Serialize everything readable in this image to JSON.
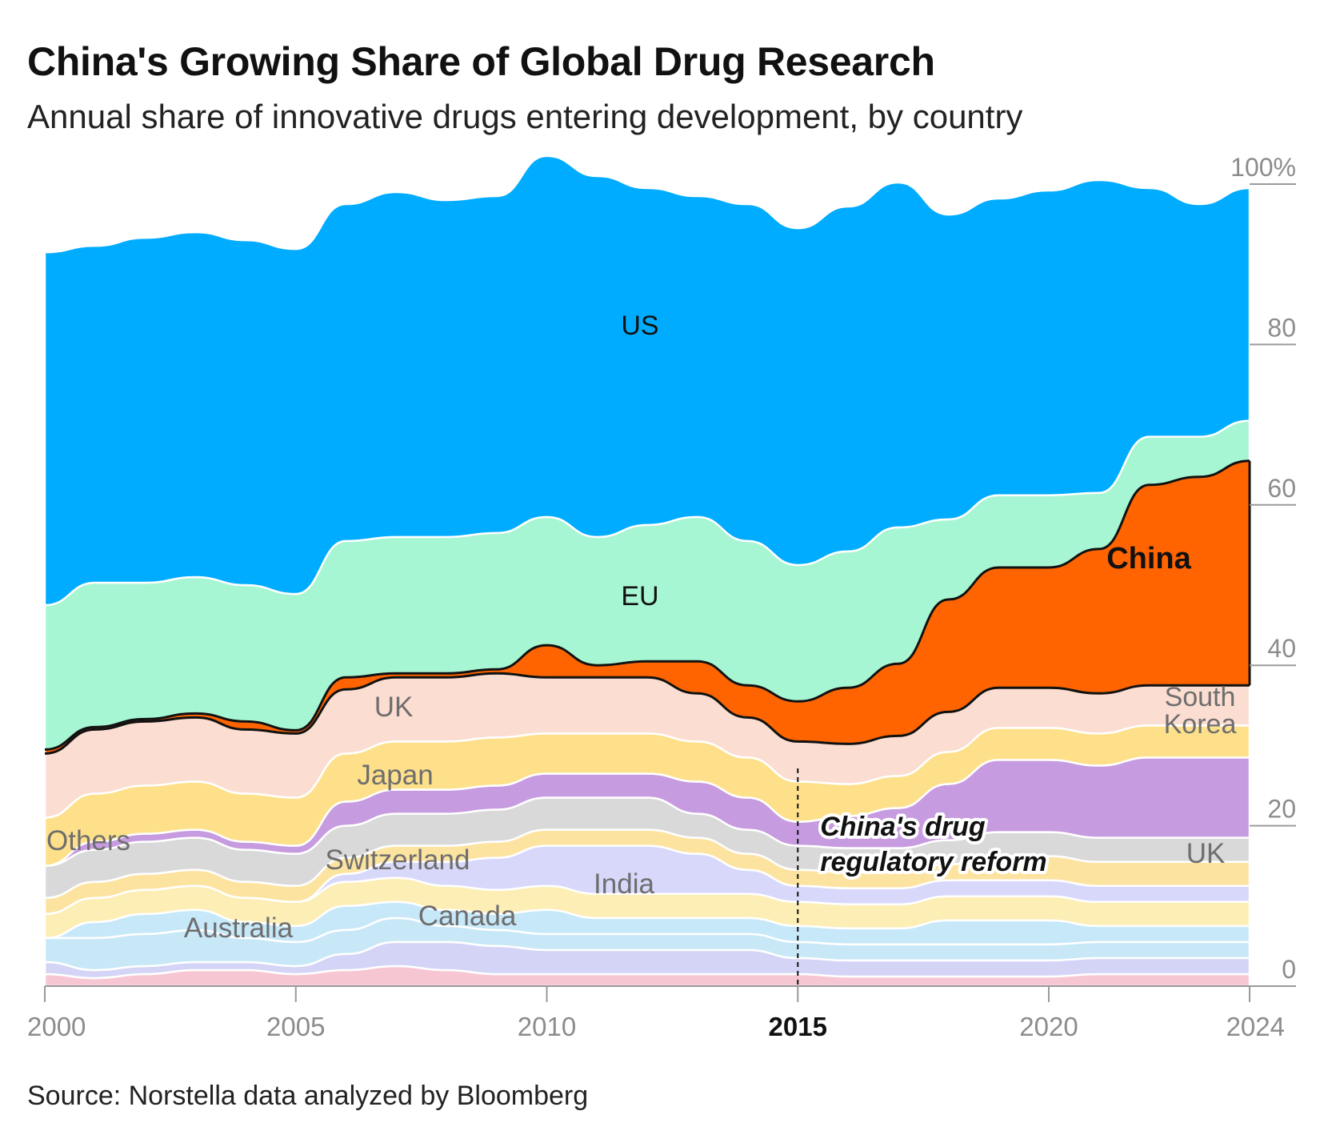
{
  "header": {
    "title": "China's Growing Share of Global Drug Research",
    "subtitle": "Annual share of innovative drugs entering development, by country"
  },
  "footer": {
    "source": "Source: Norstella data analyzed by Bloomberg"
  },
  "annotation": {
    "line1": "China's drug",
    "line2": "regulatory reform",
    "year": 2015
  },
  "chart_data": {
    "type": "area",
    "stacked": true,
    "smoothing": "stream",
    "ylim": [
      0,
      100
    ],
    "yticks": [
      0,
      20,
      40,
      60,
      80,
      100
    ],
    "ytick_labels": [
      "0",
      "20",
      "40",
      "60",
      "80",
      "100%"
    ],
    "xlim": [
      2000,
      2024
    ],
    "xticks": [
      2000,
      2005,
      2010,
      2015,
      2020,
      2024
    ],
    "xtick_labels": [
      "2000",
      "2005",
      "2010",
      "2015",
      "2020",
      "2024"
    ],
    "highlight_xtick": 2015,
    "x": [
      2000,
      2001,
      2002,
      2003,
      2004,
      2005,
      2006,
      2007,
      2008,
      2009,
      2010,
      2011,
      2012,
      2013,
      2014,
      2015,
      2016,
      2017,
      2018,
      2019,
      2020,
      2021,
      2022,
      2023,
      2024
    ],
    "series": [
      {
        "name": "",
        "color": "#f7c6d3",
        "values": [
          1.5,
          1,
          1.5,
          2,
          2,
          1.5,
          2,
          2.5,
          2,
          1.5,
          1.5,
          1.5,
          1.5,
          1.5,
          1.5,
          1.5,
          1.2,
          1.2,
          1.2,
          1.2,
          1.2,
          1.5,
          1.5,
          1.5,
          1.5
        ]
      },
      {
        "name": "",
        "color": "#d4d4f7",
        "values": [
          1.5,
          1,
          1,
          1,
          1,
          1,
          2,
          3,
          3.5,
          3.5,
          3,
          3,
          3,
          3,
          3,
          2,
          2,
          2,
          2,
          2,
          2,
          2,
          2,
          2,
          2
        ]
      },
      {
        "name": "",
        "color": "#c8e8f8",
        "values": [
          3,
          4,
          4,
          4,
          3,
          3,
          3,
          3,
          2,
          2,
          2,
          2,
          2,
          2,
          2,
          2,
          2,
          2,
          2,
          2,
          2,
          2,
          2,
          2,
          2
        ]
      },
      {
        "name": "Australia",
        "color": "#c6e8f9",
        "values": [
          0,
          2,
          2.5,
          2.5,
          2,
          2,
          3,
          2,
          2,
          2,
          3,
          2,
          2,
          2,
          2,
          2,
          2,
          2,
          3,
          3,
          3,
          2,
          2,
          2,
          2
        ]
      },
      {
        "name": "Canada",
        "color": "#fdeeb5",
        "values": [
          3,
          3,
          3,
          3,
          3,
          3,
          3,
          3,
          3,
          3,
          3,
          3,
          3,
          3,
          3,
          3,
          3,
          3,
          3,
          3,
          3,
          3,
          3,
          3,
          3
        ]
      },
      {
        "name": "India",
        "color": "#d8d8fb",
        "values": [
          0,
          0,
          0,
          0,
          0,
          0,
          1,
          2,
          3,
          4,
          5,
          6,
          6,
          5,
          3,
          2,
          2,
          2,
          2,
          2,
          2,
          2,
          2,
          2,
          2
        ]
      },
      {
        "name": "Switzerland",
        "color": "#fde3a0",
        "values": [
          2,
          2,
          2,
          2,
          2,
          2,
          2,
          2,
          2,
          2,
          2,
          2,
          2,
          2,
          2,
          2,
          2,
          2,
          2,
          3,
          3,
          3,
          3,
          3,
          3
        ]
      },
      {
        "name": "Others",
        "color": "#d9d9d9",
        "values": [
          4,
          4,
          4,
          4,
          4,
          4,
          4,
          4,
          4,
          4,
          4,
          4,
          4,
          3,
          3,
          3,
          3,
          3,
          3,
          3,
          3,
          3,
          3,
          3,
          3
        ]
      },
      {
        "name": "South Korea",
        "color": "#c79be0",
        "values": [
          0,
          1,
          1,
          1,
          1,
          1,
          3,
          3,
          3,
          3,
          3,
          3,
          3,
          4,
          4,
          3,
          4,
          5,
          7,
          9,
          9,
          9,
          10,
          10,
          10
        ]
      },
      {
        "name": "Japan",
        "color": "#fde089",
        "values": [
          6,
          6,
          6,
          6,
          6,
          6,
          6,
          6,
          6,
          6,
          5,
          5,
          5,
          5,
          5,
          5,
          4,
          4,
          4,
          4,
          4,
          4,
          4,
          4,
          4
        ]
      },
      {
        "name": "UK",
        "color": "#fbddd1",
        "values": [
          8,
          8,
          8,
          8,
          8,
          8,
          8,
          8,
          8,
          8,
          7,
          7,
          7,
          6,
          5,
          5,
          5,
          5,
          5,
          5,
          5,
          5,
          5,
          5,
          5
        ]
      },
      {
        "name": "China",
        "color": "#ff6400",
        "values": [
          0.5,
          0.3,
          0.3,
          0.5,
          1,
          0.4,
          1.5,
          0.5,
          0.5,
          0.5,
          4,
          1.5,
          2,
          4,
          4,
          5,
          7,
          9,
          14,
          15,
          15,
          18,
          25,
          26,
          28
        ]
      },
      {
        "name": "EU",
        "color": "#a7f6d3",
        "values": [
          18,
          18,
          17,
          17,
          17,
          17,
          17,
          17,
          17,
          17,
          16,
          16,
          17,
          18,
          18,
          17,
          17,
          17,
          10,
          9,
          9,
          7,
          6,
          5,
          5
        ]
      },
      {
        "name": "US",
        "color": "#00acff",
        "values": [
          44,
          42,
          43,
          43,
          43,
          43,
          42,
          43,
          42,
          42,
          45,
          45,
          42,
          40,
          42,
          42,
          43,
          43,
          38,
          37,
          38,
          39,
          31,
          29,
          29
        ]
      }
    ],
    "labels": [
      {
        "text": "US",
        "series": "US"
      },
      {
        "text": "EU",
        "series": "EU"
      },
      {
        "text": "UK",
        "series": "UK"
      },
      {
        "text": "Japan",
        "series": "Japan"
      },
      {
        "text": "Others",
        "series": "Others"
      },
      {
        "text": "Switzerland",
        "series": "Switzerland"
      },
      {
        "text": "India",
        "series": "India"
      },
      {
        "text": "Canada",
        "series": "Canada"
      },
      {
        "text": "Australia",
        "series": "Australia"
      },
      {
        "text": "China",
        "series": "China"
      },
      {
        "text": "South",
        "series": "South Korea"
      },
      {
        "text": "Korea",
        "series": "South Korea"
      },
      {
        "text": "UK",
        "series": "UK"
      }
    ]
  }
}
